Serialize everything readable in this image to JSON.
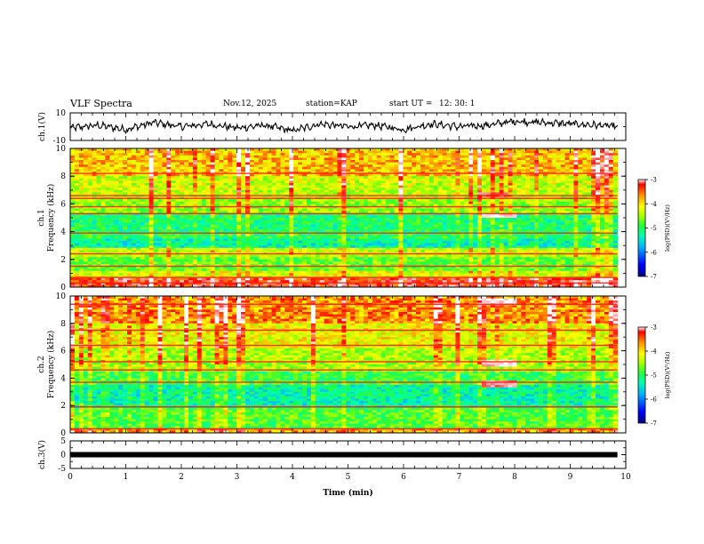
{
  "header": {
    "title": "VLF Spectra",
    "date": "Nov.12, 2025",
    "station": "station=KAP",
    "start_ut_label": "start  UT =",
    "start_ut_value": "12: 30: 1"
  },
  "colors": {
    "spectrogram_scale": [
      "#000080",
      "#0000ff",
      "#00b0ff",
      "#00ffb0",
      "#20ff40",
      "#a0ff00",
      "#ffff00",
      "#ff9000",
      "#ff0000",
      "#ffffff"
    ],
    "trace": "#000000"
  },
  "chart_data": [
    {
      "type": "line",
      "panel": "ch1-waveform",
      "ylabel": "ch.1(V)",
      "ylim": [
        -10,
        10
      ],
      "yticks": [
        "10",
        "-10"
      ],
      "series": [
        {
          "x": [
            0,
            0.5,
            1,
            1.5,
            2,
            2.5,
            3,
            3.5,
            4,
            4.5,
            5,
            5.5,
            6,
            6.5,
            7,
            7.5,
            8,
            8.5,
            9,
            9.5,
            9.85
          ],
          "values": [
            -1,
            1,
            -2,
            3,
            0,
            2,
            -1,
            1,
            -3,
            2,
            0,
            1,
            -2,
            2,
            0,
            1,
            4,
            3,
            2,
            1,
            0
          ]
        }
      ]
    },
    {
      "type": "heatmap",
      "panel": "ch1-spectrogram",
      "ylabel": "ch.1\nFrequency (kHz)",
      "ylim": [
        0,
        10
      ],
      "yticks": [
        "0",
        "2",
        "4",
        "6",
        "8",
        "10"
      ],
      "colorbar": {
        "label": "log(PSD)(V²/Hz)",
        "range": [
          -7,
          -3
        ],
        "ticks": [
          "-3",
          "-4",
          "-5",
          "-6",
          "-7"
        ]
      },
      "bands": [
        {
          "from": 0,
          "to": 0.6,
          "level": -3.5
        },
        {
          "from": 0.6,
          "to": 1.2,
          "level": -4.5
        },
        {
          "from": 1.2,
          "to": 2.2,
          "level": -5.0
        },
        {
          "from": 2.2,
          "to": 2.8,
          "level": -4.6
        },
        {
          "from": 2.8,
          "to": 3.5,
          "level": -5.6
        },
        {
          "from": 3.5,
          "to": 4.0,
          "level": -5.3
        },
        {
          "from": 4.0,
          "to": 5.3,
          "level": -5.4
        },
        {
          "from": 5.3,
          "to": 6.5,
          "level": -4.8
        },
        {
          "from": 6.5,
          "to": 8.0,
          "level": -4.6
        },
        {
          "from": 8.0,
          "to": 10,
          "level": -4.1
        }
      ],
      "lines": [
        0.3,
        0.7,
        1.5,
        2.4,
        3.9,
        5.3,
        5.8,
        6.4,
        6.6,
        8.2
      ],
      "events": [
        {
          "t0": 7.4,
          "t1": 8.0,
          "f0": 5.0,
          "f1": 5.4,
          "level": -3.1
        },
        {
          "t0": 7.4,
          "t1": 7.9,
          "f0": 6.5,
          "f1": 6.9,
          "level": -3.3
        }
      ]
    },
    {
      "type": "heatmap",
      "panel": "ch2-spectrogram",
      "ylabel": "ch.2\nFrequency (kHz)",
      "ylim": [
        0,
        10
      ],
      "yticks": [
        "0",
        "2",
        "4",
        "6",
        "8",
        "10"
      ],
      "colorbar": {
        "label": "log(PSD)(V²/Hz)",
        "range": [
          -7,
          -3
        ],
        "ticks": [
          "-3",
          "-4",
          "-5",
          "-6",
          "-7"
        ]
      },
      "bands": [
        {
          "from": 0,
          "to": 0.4,
          "level": -4.0
        },
        {
          "from": 0.4,
          "to": 1.8,
          "level": -5.1
        },
        {
          "from": 1.8,
          "to": 3.5,
          "level": -5.6
        },
        {
          "from": 3.5,
          "to": 4.5,
          "level": -5.2
        },
        {
          "from": 4.5,
          "to": 6.2,
          "level": -4.7
        },
        {
          "from": 6.2,
          "to": 8.0,
          "level": -4.4
        },
        {
          "from": 8.0,
          "to": 10,
          "level": -3.9
        }
      ],
      "lines": [
        0.3,
        1.9,
        3.7,
        4.6,
        5.2,
        6.4,
        7.5,
        9.4
      ],
      "events": [
        {
          "t0": 7.4,
          "t1": 8.0,
          "f0": 9.3,
          "f1": 9.8,
          "level": -3.0
        },
        {
          "t0": 7.4,
          "t1": 8.0,
          "f0": 4.8,
          "f1": 5.3,
          "level": -3.1
        },
        {
          "t0": 7.4,
          "t1": 8.0,
          "f0": 3.3,
          "f1": 3.8,
          "level": -3.2
        }
      ]
    },
    {
      "type": "line",
      "panel": "ch3-waveform",
      "ylabel": "ch.3(V)",
      "ylim": [
        -5,
        5
      ],
      "yticks": [
        "5",
        "0",
        "-5"
      ],
      "series": [
        {
          "x": [
            0,
            9.85
          ],
          "values": [
            0,
            0
          ]
        }
      ]
    }
  ],
  "xaxis": {
    "label": "Time (min)",
    "ticks": [
      "0",
      "1",
      "2",
      "3",
      "4",
      "5",
      "6",
      "7",
      "8",
      "9",
      "10"
    ],
    "range": [
      0,
      10
    ]
  }
}
